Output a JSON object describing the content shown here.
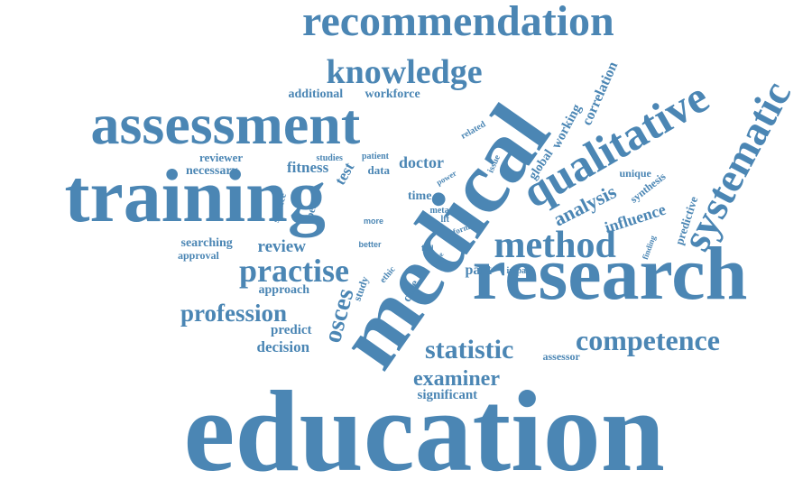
{
  "palette": {
    "word": "#4b86b4",
    "background": "#ffffff"
  },
  "words": [
    {
      "text": "education"
    },
    {
      "text": "research"
    },
    {
      "text": "medical"
    },
    {
      "text": "training"
    },
    {
      "text": "assessment"
    },
    {
      "text": "recommendation"
    },
    {
      "text": "qualitative"
    },
    {
      "text": "systematic"
    },
    {
      "text": "knowledge"
    },
    {
      "text": "method"
    },
    {
      "text": "practise"
    },
    {
      "text": "competence"
    },
    {
      "text": "statistic"
    },
    {
      "text": "profession"
    },
    {
      "text": "examiner"
    },
    {
      "text": "osces"
    },
    {
      "text": "analysis"
    },
    {
      "text": "review"
    },
    {
      "text": "influence"
    },
    {
      "text": "decision"
    },
    {
      "text": "doctor"
    },
    {
      "text": "correlation"
    },
    {
      "text": "working"
    },
    {
      "text": "fitness"
    },
    {
      "text": "predict"
    },
    {
      "text": "significant"
    },
    {
      "text": "approach"
    },
    {
      "text": "part"
    },
    {
      "text": "additional"
    },
    {
      "text": "workforce"
    },
    {
      "text": "searching"
    },
    {
      "text": "necessary"
    },
    {
      "text": "reviewer"
    },
    {
      "text": "test"
    },
    {
      "text": "data"
    },
    {
      "text": "global"
    },
    {
      "text": "predictive"
    },
    {
      "text": "synthesis"
    },
    {
      "text": "time"
    },
    {
      "text": "study"
    },
    {
      "text": "approval"
    },
    {
      "text": "case"
    },
    {
      "text": "assessor"
    },
    {
      "text": "unique"
    },
    {
      "text": "science"
    },
    {
      "text": "best"
    },
    {
      "text": "patient"
    },
    {
      "text": "studies"
    },
    {
      "text": "issue"
    },
    {
      "text": "related"
    },
    {
      "text": "power"
    },
    {
      "text": "impact"
    },
    {
      "text": "finding"
    },
    {
      "text": "ethic"
    },
    {
      "text": "better"
    },
    {
      "text": "more"
    },
    {
      "text": "meta"
    },
    {
      "text": "lft"
    },
    {
      "text": "form"
    },
    {
      "text": "full"
    },
    {
      "text": "osce"
    }
  ]
}
